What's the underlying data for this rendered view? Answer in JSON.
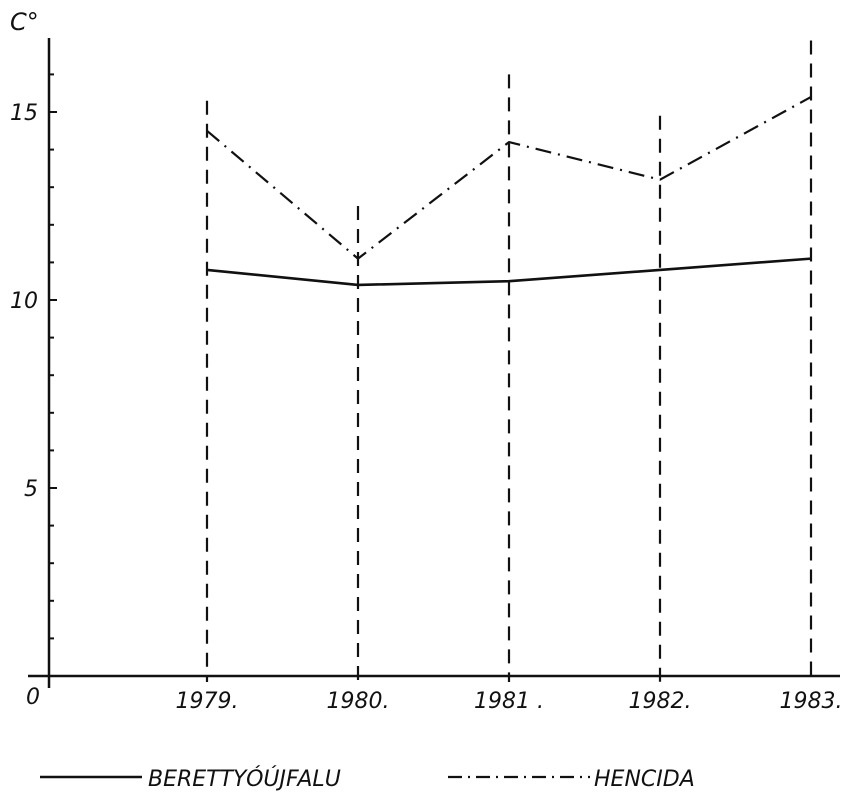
{
  "chart_data": {
    "type": "line",
    "ylabel": "C°",
    "origin_label": "0",
    "categories": [
      "1979.",
      "1980.",
      "1981 .",
      "1982.",
      "1983."
    ],
    "x": [
      1979,
      1980,
      1981,
      1982,
      1983
    ],
    "y_ticks": [
      "5",
      "10",
      "15"
    ],
    "ylim": [
      0,
      17
    ],
    "grid": "vertical dashed lines at each year",
    "legend_position": "bottom",
    "series": [
      {
        "name": "BERETTYÓÚJFALU",
        "style": "solid",
        "values": [
          10.8,
          10.4,
          10.5,
          10.8,
          11.1
        ]
      },
      {
        "name": "HENCIDA",
        "style": "dash-dot",
        "values": [
          14.5,
          11.1,
          14.2,
          13.2,
          15.4
        ]
      }
    ],
    "guide_line_tops": [
      15.3,
      12.5,
      16.0,
      14.9,
      16.9
    ],
    "colors": {
      "ink": "#111111",
      "background": "#ffffff"
    }
  }
}
